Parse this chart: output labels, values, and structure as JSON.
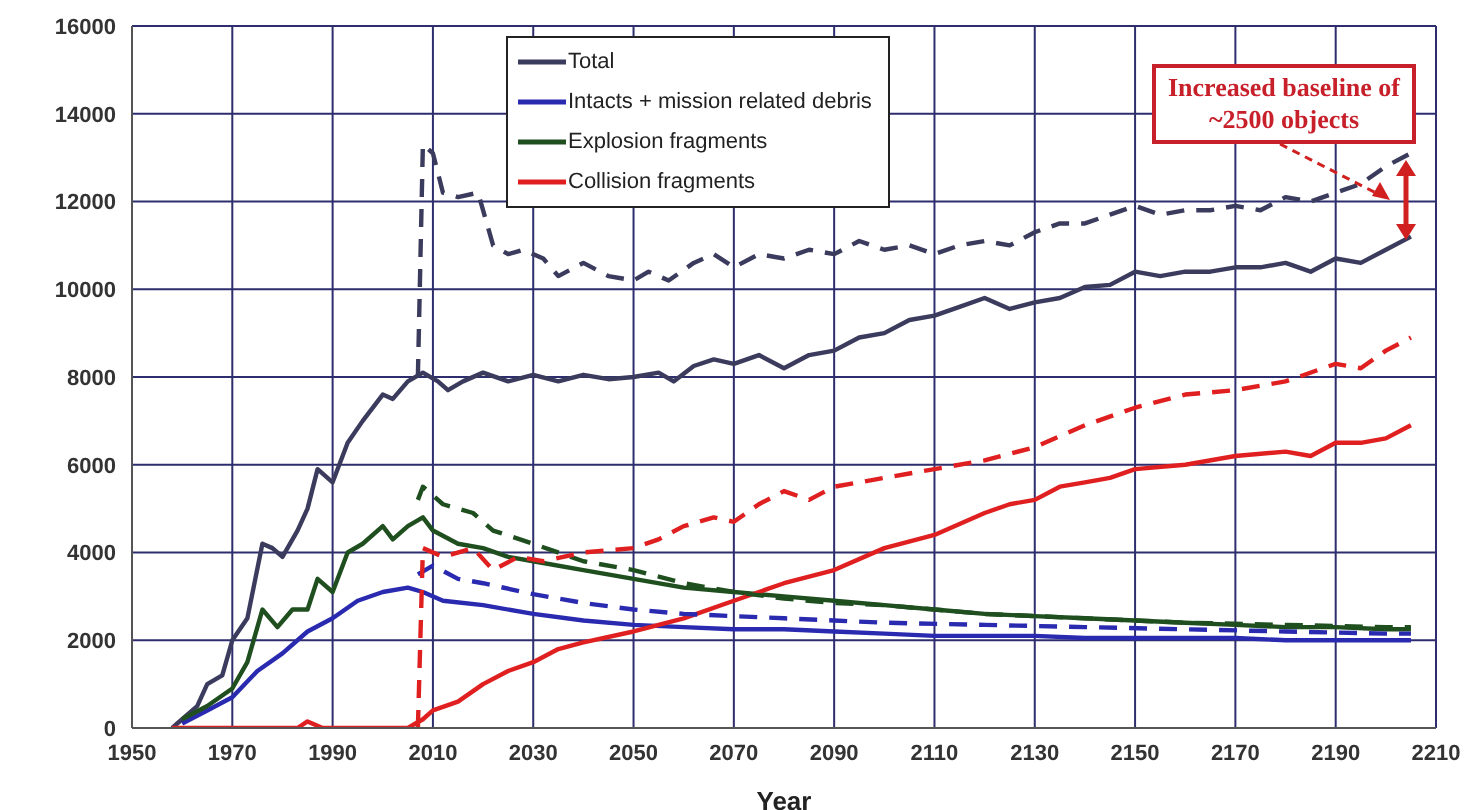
{
  "chart_data": {
    "type": "line",
    "xlabel": "Year",
    "xlim": [
      1950,
      2210
    ],
    "xticks": [
      1950,
      1970,
      1990,
      2010,
      2030,
      2050,
      2070,
      2090,
      2110,
      2130,
      2150,
      2170,
      2190,
      2210
    ],
    "ylim": [
      0,
      16000
    ],
    "yticks": [
      0,
      2000,
      4000,
      6000,
      8000,
      10000,
      12000,
      14000,
      16000
    ],
    "grid": true,
    "legend": "top",
    "marker": "none",
    "annotations": [
      "Increased baseline of ~2500 objects"
    ],
    "series": [
      {
        "name": "Total",
        "color": "#3b3b5e",
        "line_style": "solid",
        "x": [
          1958,
          1960,
          1963,
          1965,
          1968,
          1970,
          1973,
          1976,
          1978,
          1980,
          1983,
          1985,
          1987,
          1990,
          1993,
          1996,
          2000,
          2002,
          2005,
          2008,
          2011,
          2013,
          2016,
          2020,
          2025,
          2030,
          2035,
          2040,
          2045,
          2050,
          2055,
          2058,
          2062,
          2066,
          2070,
          2075,
          2080,
          2085,
          2090,
          2095,
          2100,
          2105,
          2110,
          2115,
          2120,
          2125,
          2130,
          2135,
          2140,
          2145,
          2150,
          2155,
          2160,
          2165,
          2170,
          2175,
          2180,
          2185,
          2190,
          2195,
          2200,
          2205
        ],
        "values": [
          0,
          200,
          500,
          1000,
          1200,
          2000,
          2500,
          4200,
          4100,
          3900,
          4500,
          5000,
          5900,
          5600,
          6500,
          7000,
          7600,
          7500,
          7900,
          8100,
          7900,
          7700,
          7900,
          8100,
          7900,
          8050,
          7900,
          8050,
          7950,
          8000,
          8100,
          7900,
          8250,
          8400,
          8300,
          8500,
          8200,
          8500,
          8600,
          8900,
          9000,
          9300,
          9400,
          9600,
          9800,
          9550,
          9700,
          9800,
          10050,
          10100,
          10400,
          10300,
          10400,
          10400,
          10500,
          10500,
          10600,
          10400,
          10700,
          10600,
          10900,
          11200
        ]
      },
      {
        "name": "Intacts + mission related debris",
        "color": "#2a2ab0",
        "line_style": "solid",
        "x": [
          1960,
          1965,
          1970,
          1975,
          1980,
          1985,
          1990,
          1995,
          2000,
          2005,
          2008,
          2012,
          2020,
          2030,
          2040,
          2050,
          2060,
          2070,
          2080,
          2090,
          2100,
          2110,
          2120,
          2130,
          2140,
          2150,
          2160,
          2170,
          2180,
          2190,
          2200,
          2205
        ],
        "values": [
          100,
          400,
          700,
          1300,
          1700,
          2200,
          2500,
          2900,
          3100,
          3200,
          3100,
          2900,
          2800,
          2600,
          2450,
          2350,
          2300,
          2250,
          2250,
          2200,
          2150,
          2100,
          2100,
          2100,
          2050,
          2050,
          2050,
          2050,
          2000,
          2000,
          2000,
          2000
        ]
      },
      {
        "name": "Explosion fragments",
        "color": "#1f4f1f",
        "line_style": "solid",
        "x": [
          1960,
          1965,
          1970,
          1973,
          1976,
          1979,
          1982,
          1985,
          1987,
          1990,
          1993,
          1996,
          2000,
          2002,
          2005,
          2008,
          2010,
          2015,
          2020,
          2025,
          2030,
          2040,
          2050,
          2060,
          2070,
          2080,
          2090,
          2100,
          2110,
          2120,
          2130,
          2140,
          2150,
          2160,
          2170,
          2180,
          2190,
          2200,
          2205
        ],
        "values": [
          200,
          500,
          900,
          1500,
          2700,
          2300,
          2700,
          2700,
          3400,
          3100,
          4000,
          4200,
          4600,
          4300,
          4600,
          4800,
          4500,
          4200,
          4100,
          3900,
          3800,
          3600,
          3400,
          3200,
          3100,
          3000,
          2900,
          2800,
          2700,
          2600,
          2550,
          2500,
          2450,
          2400,
          2350,
          2300,
          2300,
          2250,
          2250
        ]
      },
      {
        "name": "Collision fragments",
        "color": "#e02020",
        "line_style": "solid",
        "x": [
          1958,
          1983,
          1985,
          1988,
          2005,
          2008,
          2010,
          2015,
          2020,
          2025,
          2030,
          2035,
          2040,
          2050,
          2060,
          2070,
          2080,
          2090,
          2100,
          2110,
          2120,
          2125,
          2130,
          2135,
          2140,
          2145,
          2150,
          2160,
          2170,
          2180,
          2185,
          2190,
          2195,
          2200,
          2205
        ],
        "values": [
          0,
          0,
          150,
          0,
          0,
          200,
          400,
          600,
          1000,
          1300,
          1500,
          1800,
          1950,
          2200,
          2500,
          2900,
          3300,
          3600,
          4100,
          4400,
          4900,
          5100,
          5200,
          5500,
          5600,
          5700,
          5900,
          6000,
          6200,
          6300,
          6200,
          6500,
          6500,
          6600,
          6900
        ]
      },
      {
        "color": "#3b3b5e",
        "line_style": "dashed",
        "x": [
          2007,
          2008,
          2010,
          2012,
          2015,
          2019,
          2022,
          2025,
          2028,
          2032,
          2035,
          2040,
          2045,
          2050,
          2053,
          2057,
          2062,
          2066,
          2070,
          2075,
          2080,
          2085,
          2090,
          2095,
          2100,
          2105,
          2110,
          2115,
          2120,
          2125,
          2130,
          2135,
          2140,
          2145,
          2150,
          2155,
          2160,
          2165,
          2170,
          2175,
          2180,
          2185,
          2190,
          2195,
          2200,
          2205
        ],
        "values": [
          8000,
          13300,
          13100,
          12200,
          12100,
          12200,
          11000,
          10800,
          10900,
          10700,
          10300,
          10600,
          10300,
          10200,
          10400,
          10200,
          10600,
          10800,
          10500,
          10800,
          10700,
          10900,
          10800,
          11100,
          10900,
          11000,
          10800,
          11000,
          11100,
          11000,
          11300,
          11500,
          11500,
          11700,
          11900,
          11700,
          11800,
          11800,
          11900,
          11800,
          12100,
          12000,
          12200,
          12400,
          12800,
          13100
        ]
      },
      {
        "color": "#2a2ab0",
        "line_style": "dashed",
        "x": [
          2007,
          2010,
          2015,
          2020,
          2030,
          2040,
          2050,
          2060,
          2070,
          2080,
          2090,
          2100,
          2120,
          2140,
          2160,
          2180,
          2200,
          2205
        ],
        "values": [
          3500,
          3700,
          3400,
          3300,
          3050,
          2850,
          2700,
          2600,
          2550,
          2500,
          2450,
          2400,
          2350,
          2300,
          2250,
          2200,
          2150,
          2150
        ]
      },
      {
        "color": "#1f4f1f",
        "line_style": "dashed",
        "x": [
          2007,
          2008,
          2012,
          2018,
          2022,
          2030,
          2040,
          2050,
          2060,
          2070,
          2080,
          2090,
          2100,
          2120,
          2140,
          2160,
          2180,
          2200,
          2205
        ],
        "values": [
          5200,
          5500,
          5100,
          4900,
          4500,
          4200,
          3800,
          3600,
          3300,
          3100,
          2950,
          2850,
          2800,
          2600,
          2500,
          2400,
          2350,
          2300,
          2300
        ]
      },
      {
        "color": "#e02020",
        "line_style": "dashed",
        "x": [
          2007,
          2008,
          2012,
          2018,
          2022,
          2027,
          2032,
          2040,
          2050,
          2055,
          2060,
          2066,
          2070,
          2075,
          2080,
          2085,
          2090,
          2100,
          2110,
          2120,
          2130,
          2140,
          2150,
          2160,
          2170,
          2180,
          2190,
          2195,
          2200,
          2205
        ],
        "values": [
          0,
          4100,
          3900,
          4100,
          3600,
          3900,
          3800,
          4000,
          4100,
          4300,
          4600,
          4800,
          4700,
          5100,
          5400,
          5200,
          5500,
          5700,
          5900,
          6100,
          6400,
          6900,
          7300,
          7600,
          7700,
          7900,
          8300,
          8200,
          8600,
          8900
        ]
      }
    ]
  }
}
